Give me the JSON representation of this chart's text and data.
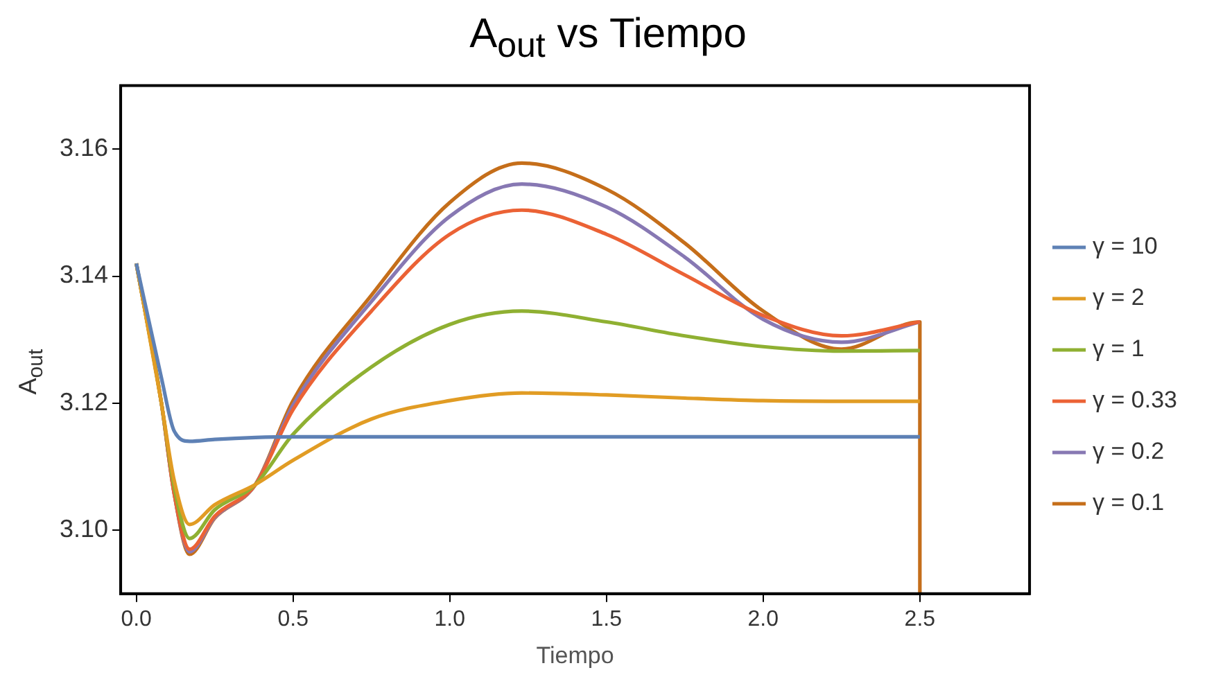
{
  "chart_data": {
    "type": "line",
    "title": "A$_{out}$ vs Tiempo",
    "xlabel": "Tiempo",
    "ylabel": "A$_{out}$",
    "x": [
      0,
      0.08,
      0.12,
      0.17,
      0.25,
      0.38,
      0.5,
      0.75,
      1.0,
      1.23,
      1.5,
      1.75,
      2.0,
      2.25,
      2.5
    ],
    "series": [
      {
        "name": "γ = 10",
        "color": "#5e81b5",
        "values": [
          3.142,
          3.124,
          3.1157,
          3.114,
          3.1143,
          3.1146,
          3.1147,
          3.1147,
          3.1147,
          3.1147,
          3.1147,
          3.1147,
          3.1147,
          3.1147,
          3.1147
        ]
      },
      {
        "name": "γ = 2",
        "color": "#e19c24",
        "values": [
          3.142,
          3.12,
          3.108,
          3.1009,
          3.104,
          3.1072,
          3.111,
          3.1175,
          3.1204,
          3.1216,
          3.1213,
          3.1208,
          3.1204,
          3.1203,
          3.1203
        ]
      },
      {
        "name": "γ = 1",
        "color": "#8fb032",
        "values": [
          3.142,
          3.12,
          3.107,
          3.0987,
          3.1032,
          3.1072,
          3.1151,
          3.1257,
          3.1324,
          3.1345,
          3.1328,
          3.1306,
          3.1289,
          3.1282,
          3.1283
        ]
      },
      {
        "name": "γ = 0.33",
        "color": "#eb6235",
        "values": [
          3.142,
          3.12,
          3.106,
          3.097,
          3.1022,
          3.1072,
          3.119,
          3.1345,
          3.1466,
          3.1504,
          3.1466,
          3.1402,
          3.1338,
          3.1306,
          3.1328
        ]
      },
      {
        "name": "γ = 0.2",
        "color": "#8778b3",
        "values": [
          3.142,
          3.12,
          3.106,
          3.0966,
          3.102,
          3.1072,
          3.1197,
          3.136,
          3.1494,
          3.1545,
          3.1509,
          3.143,
          3.1332,
          3.1296,
          3.1328
        ]
      },
      {
        "name": "γ = 0.1",
        "color": "#c56e1a",
        "x": [
          0,
          0.08,
          0.12,
          0.17,
          0.25,
          0.38,
          0.5,
          0.75,
          1.0,
          1.23,
          1.5,
          1.75,
          2.0,
          2.25,
          2.5,
          2.5
        ],
        "values": [
          3.142,
          3.12,
          3.106,
          3.0962,
          3.1019,
          3.1072,
          3.1204,
          3.137,
          3.1516,
          3.1578,
          3.1537,
          3.1452,
          3.1345,
          3.1285,
          3.1328,
          3.09
        ]
      }
    ],
    "xlim": [
      -0.05,
      2.85
    ],
    "xticks": [
      {
        "value": 0,
        "label": "0.0"
      },
      0.5,
      {
        "value": 1,
        "label": "1.0"
      },
      1.5,
      {
        "value": 2,
        "label": "2.0"
      },
      2.5
    ],
    "ylim": [
      3.09,
      3.17
    ],
    "yticks": [
      {
        "value": 3.1,
        "label": "3.10"
      },
      3.12,
      3.14,
      3.16
    ],
    "grid": false,
    "legend": "right",
    "marker": "none",
    "line_style": "solid"
  }
}
